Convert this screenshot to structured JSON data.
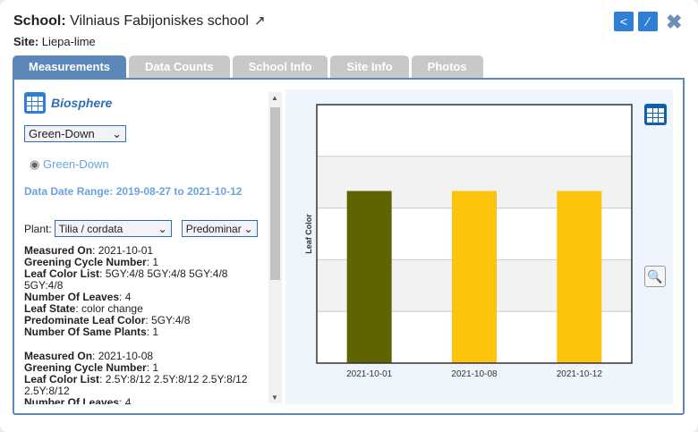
{
  "header": {
    "school_label": "School:",
    "school_name": "Vilniaus Fabijoniskes school",
    "site_label": "Site:",
    "site_name": "Liepa-lime"
  },
  "tabs": [
    "Measurements",
    "Data Counts",
    "School Info",
    "Site Info",
    "Photos"
  ],
  "left": {
    "protocol": "Biosphere",
    "select": "Green-Down",
    "radio": "Green-Down",
    "date_range": "Data Date Range: 2019-08-27 to 2021-10-12",
    "plant_label": "Plant:",
    "plant_value": "Tilia / cordata",
    "type_value": "Predominar",
    "records": [
      [
        [
          "Measured On",
          "2021-10-01"
        ],
        [
          "Greening Cycle Number",
          "1"
        ],
        [
          "Leaf Color List",
          "5GY:4/8 5GY:4/8 5GY:4/8 5GY:4/8"
        ],
        [
          "Number Of Leaves",
          "4"
        ],
        [
          "Leaf State",
          "color change"
        ],
        [
          "Predominate Leaf Color",
          "5GY:4/8"
        ],
        [
          "Number Of Same Plants",
          "1"
        ]
      ],
      [
        [
          "Measured On",
          "2021-10-08"
        ],
        [
          "Greening Cycle Number",
          "1"
        ],
        [
          "Leaf Color List",
          "2.5Y:8/12 2.5Y:8/12 2.5Y:8/12 2.5Y:8/12"
        ],
        [
          "Number Of Leaves",
          "4"
        ]
      ]
    ]
  },
  "chart_data": {
    "type": "bar",
    "ylabel": "Leaf Color",
    "xlabel": "",
    "categories": [
      "2021-10-01",
      "2021-10-08",
      "2021-10-12"
    ],
    "values": [
      3.33,
      3.33,
      3.33
    ],
    "colors": [
      "#5f6300",
      "#fbc30c",
      "#fbc30c"
    ],
    "ylim": [
      0,
      5
    ],
    "grid": true
  }
}
